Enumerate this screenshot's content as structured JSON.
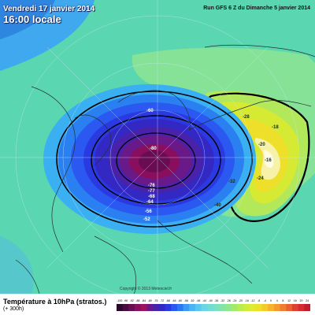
{
  "header": {
    "date": "Vendredi 17 janvier 2014",
    "time": "16:00 locale",
    "run": "Run GFS 6 Z du Dimanche 5 janvier 2014"
  },
  "footer": {
    "title": "Température à 10hPa (stratos.)",
    "subtitle": "(+ 300h)",
    "copyright": "Copyright © 2013 Meteociel.fr"
  },
  "legend": {
    "tick_labels": [
      "-100",
      "-96",
      "-92",
      "-88",
      "-84",
      "-80",
      "-76",
      "-72",
      "-68",
      "-64",
      "-60",
      "-56",
      "-52",
      "-48",
      "-44",
      "-40",
      "-36",
      "-32",
      "-28",
      "-24",
      "-20",
      "-16",
      "-12",
      "-8",
      "-4",
      "0",
      "4",
      "8",
      "12",
      "16",
      "20",
      "24"
    ],
    "colors": [
      "#2a0a2a",
      "#4a0a3e",
      "#6a0c52",
      "#8a0e5e",
      "#a0125e",
      "#6a1a88",
      "#4a22aa",
      "#3328c4",
      "#2a3ae0",
      "#2a58f0",
      "#2a78f4",
      "#3a98f6",
      "#4ab4f4",
      "#5ac8ee",
      "#6ad6e4",
      "#72dcd2",
      "#7ae0c0",
      "#84e4a6",
      "#90e88a",
      "#a2ea6c",
      "#b8ec50",
      "#ccee3a",
      "#e0ea2e",
      "#eee02a",
      "#f4cc2a",
      "#f6b42c",
      "#f49a2e",
      "#f07e30",
      "#ea6032",
      "#e04034",
      "#d42a30",
      "#c01c2a"
    ]
  },
  "map_labels": {
    "cold_core": [
      "-80",
      "-76",
      "-77",
      "-68",
      "-64",
      "-60",
      "-56",
      "-52"
    ],
    "warm_core": [
      "-16",
      "-18",
      "-20",
      "-24",
      "-28",
      "-32",
      "-40"
    ]
  }
}
